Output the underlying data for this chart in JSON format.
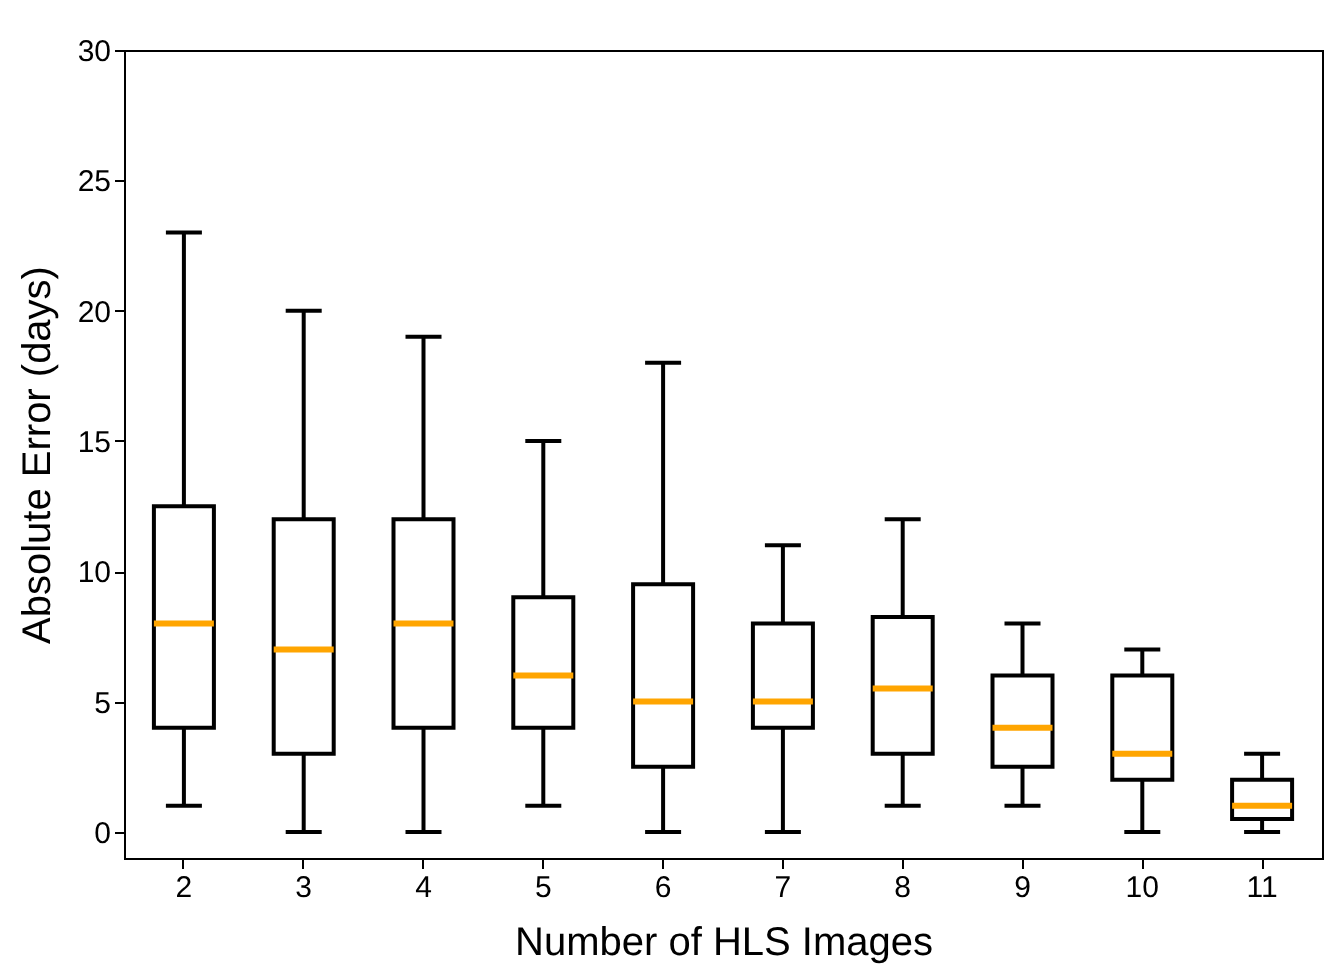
{
  "chart_data": {
    "type": "box",
    "xlabel": "Number of HLS Images",
    "ylabel": "Absolute Error (days)",
    "categories": [
      "2",
      "3",
      "4",
      "5",
      "6",
      "7",
      "8",
      "9",
      "10",
      "11"
    ],
    "ylim": [
      -1,
      30
    ],
    "yticks": [
      0,
      5,
      10,
      15,
      20,
      25,
      30
    ],
    "boxes": [
      {
        "low": 1,
        "q1": 4,
        "median": 8,
        "q3": 12.5,
        "high": 23
      },
      {
        "low": 0,
        "q1": 3,
        "median": 7,
        "q3": 12,
        "high": 20
      },
      {
        "low": 0,
        "q1": 4,
        "median": 8,
        "q3": 12,
        "high": 19
      },
      {
        "low": 1,
        "q1": 4,
        "median": 6,
        "q3": 9,
        "high": 15
      },
      {
        "low": 0,
        "q1": 2.5,
        "median": 5,
        "q3": 9.5,
        "high": 18
      },
      {
        "low": 0,
        "q1": 4,
        "median": 5,
        "q3": 8,
        "high": 11
      },
      {
        "low": 1,
        "q1": 3,
        "median": 5.5,
        "q3": 8.25,
        "high": 12
      },
      {
        "low": 1,
        "q1": 2.5,
        "median": 4,
        "q3": 6,
        "high": 8
      },
      {
        "low": 0,
        "q1": 2,
        "median": 3,
        "q3": 6,
        "high": 7
      },
      {
        "low": 0,
        "q1": 0.5,
        "median": 1,
        "q3": 2,
        "high": 3
      }
    ]
  }
}
